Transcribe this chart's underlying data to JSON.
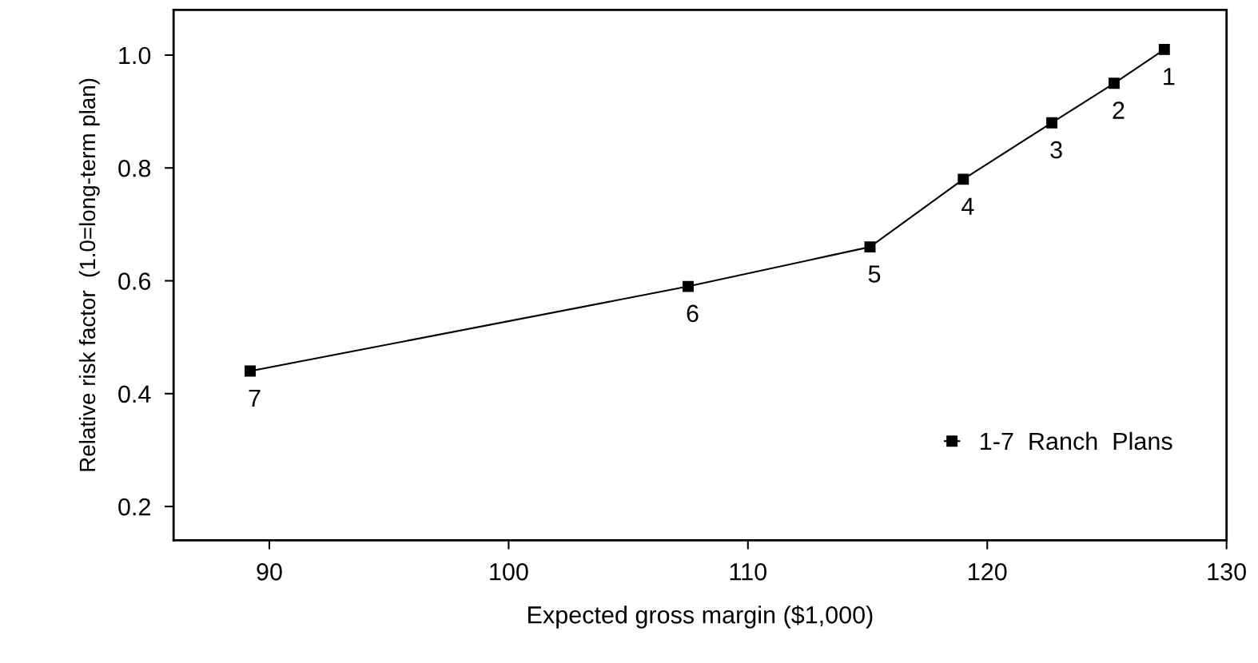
{
  "chart_data": {
    "type": "line",
    "xlabel": "Expected gross margin ($1,000)",
    "ylabel": "Relative risk factor  (1.0=long-term plan)",
    "x": [
      89.2,
      107.5,
      115.1,
      119.0,
      122.7,
      125.3,
      127.4
    ],
    "series": [
      {
        "name": "1-7  Ranch  Plans",
        "color": "#000000",
        "values": [
          0.44,
          0.59,
          0.66,
          0.78,
          0.88,
          0.95,
          1.01
        ]
      }
    ],
    "annotations": [
      {
        "text": "7",
        "x": 89.2,
        "y": 0.44
      },
      {
        "text": "6",
        "x": 107.5,
        "y": 0.59
      },
      {
        "text": "5",
        "x": 115.1,
        "y": 0.66
      },
      {
        "text": "4",
        "x": 119.0,
        "y": 0.78
      },
      {
        "text": "3",
        "x": 122.7,
        "y": 0.88
      },
      {
        "text": "2",
        "x": 125.3,
        "y": 0.95
      },
      {
        "text": "1",
        "x": 127.4,
        "y": 1.01
      }
    ],
    "xlim": [
      86,
      130
    ],
    "xticks": [
      90,
      100,
      110,
      120,
      130
    ],
    "ylim": [
      0.14,
      1.08
    ],
    "yticks": [
      {
        "value": 0.2,
        "label": "0.2"
      },
      {
        "value": 0.4,
        "label": "0.4"
      },
      {
        "value": 0.6,
        "label": "0.6"
      },
      {
        "value": 0.8,
        "label": "0.8"
      },
      {
        "value": 1.0,
        "label": "1.0"
      }
    ],
    "grid": false,
    "legend": "bottom right",
    "marker": "square",
    "line_style": "solid"
  }
}
